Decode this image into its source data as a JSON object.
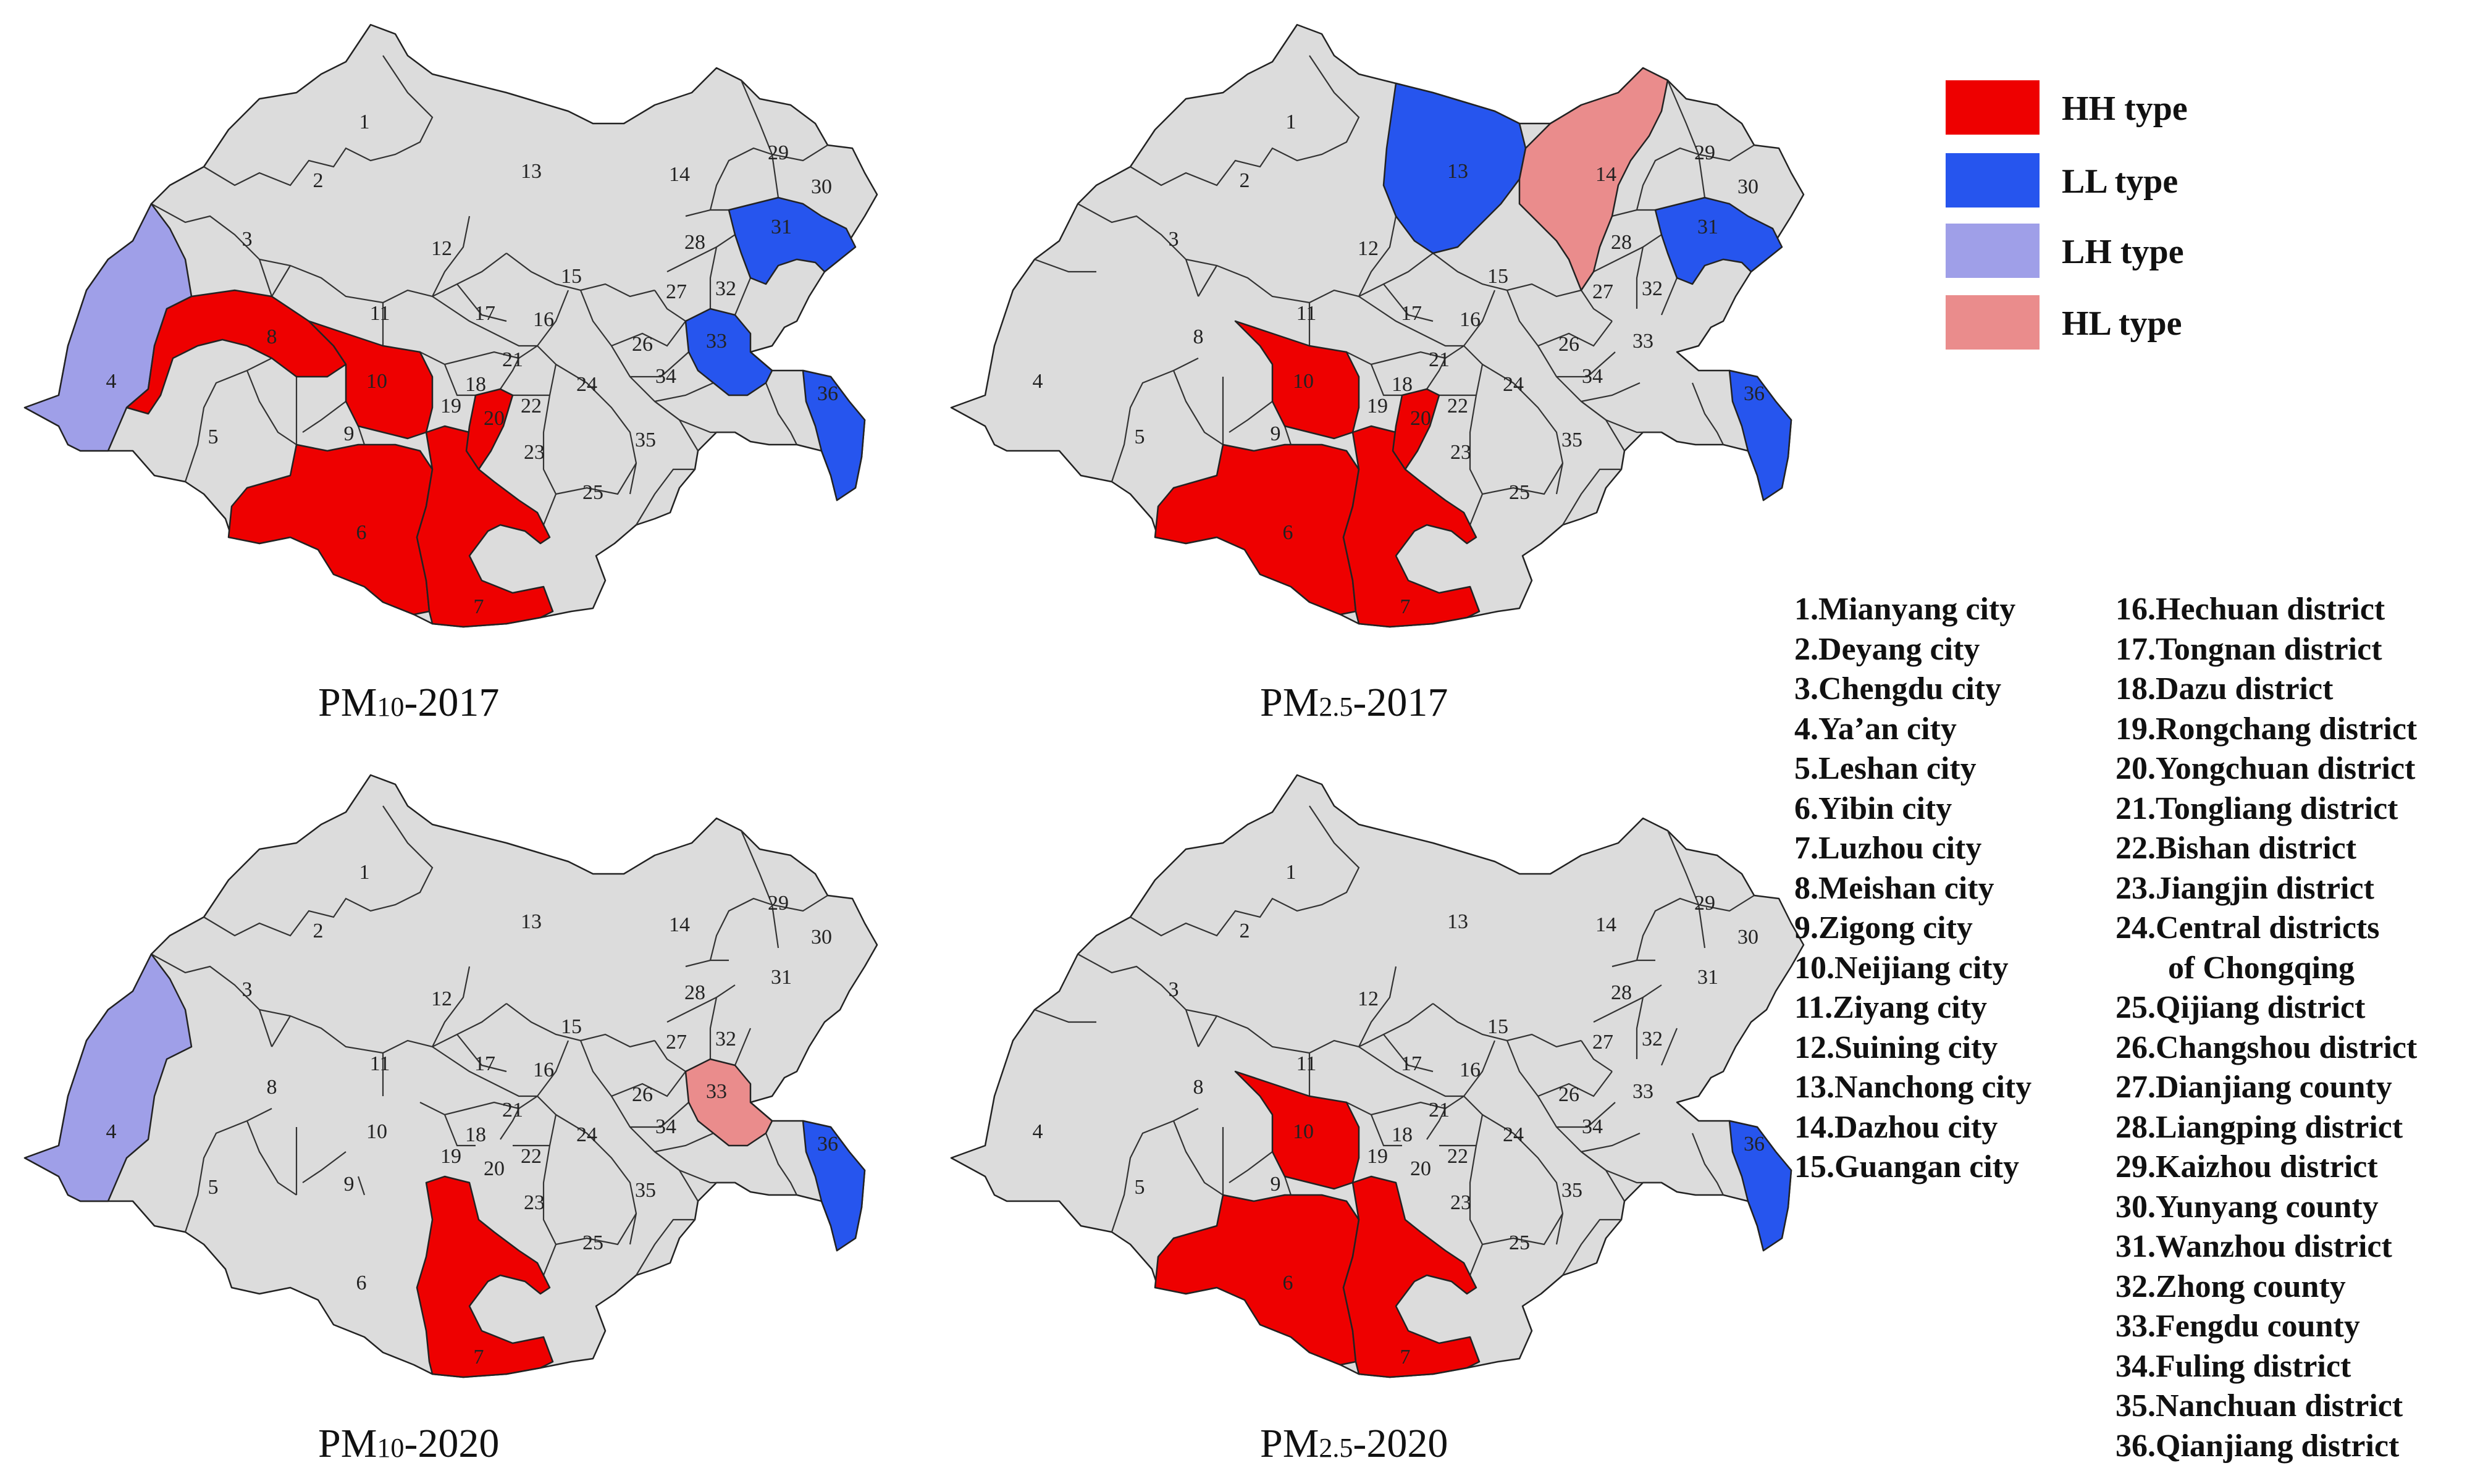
{
  "colors": {
    "HH": "#ee0000",
    "LL": "#2655ee",
    "LH": "#9f9fe8",
    "HL": "#ea8c8c",
    "none": "#dcdcdc"
  },
  "legend": [
    {
      "type": "HH",
      "label": "HH type"
    },
    {
      "type": "LL",
      "label": "LL type"
    },
    {
      "type": "LH",
      "label": "LH type"
    },
    {
      "type": "HL",
      "label": "HL type"
    }
  ],
  "maps": [
    {
      "title_main": "PM",
      "title_sub": "10",
      "title_year": "-2017",
      "highlights": {
        "8": "HH",
        "10": "HH",
        "20": "HH",
        "6": "HH",
        "7": "HH",
        "4": "LH",
        "31": "LL",
        "33": "LL",
        "36": "LL"
      }
    },
    {
      "title_main": "PM",
      "title_sub": "2.5",
      "title_year": "-2017",
      "highlights": {
        "10": "HH",
        "20": "HH",
        "6": "HH",
        "7": "HH",
        "13": "LL",
        "31": "LL",
        "36": "LL",
        "14": "HL"
      }
    },
    {
      "title_main": "PM",
      "title_sub": "10",
      "title_year": "-2020",
      "highlights": {
        "4": "LH",
        "7": "HH",
        "33": "HL",
        "36": "LL"
      }
    },
    {
      "title_main": "PM",
      "title_sub": "2.5",
      "title_year": "-2020",
      "highlights": {
        "10": "HH",
        "6": "HH",
        "7": "HH",
        "36": "LL"
      }
    }
  ],
  "key_left": [
    "1.Mianyang city",
    "2.Deyang city",
    "3.Chengdu city",
    "4.Ya’an city",
    "5.Leshan city",
    "6.Yibin city",
    "7.Luzhou city",
    "8.Meishan city",
    "9.Zigong city",
    "10.Neijiang city",
    "11.Ziyang city",
    "12.Suining city",
    "13.Nanchong city",
    "14.Dazhou city",
    "15.Guangan city"
  ],
  "key_right": [
    "16.Hechuan district",
    "17.Tongnan district",
    "18.Dazu district",
    "19.Rongchang district",
    "20.Yongchuan district",
    "21.Tongliang district",
    "22.Bishan district",
    "23.Jiangjin district",
    "24.Central districts",
    "of Chongqing",
    "25.Qijiang district",
    "26.Changshou district",
    "27.Dianjiang county",
    "28.Liangping district",
    "29.Kaizhou district",
    "30.Yunyang county",
    "31.Wanzhou district",
    "32.Zhong county",
    "33.Fengdu county",
    "34.Fuling district",
    "35.Nanchuan district",
    "36.Qianjiang district"
  ]
}
